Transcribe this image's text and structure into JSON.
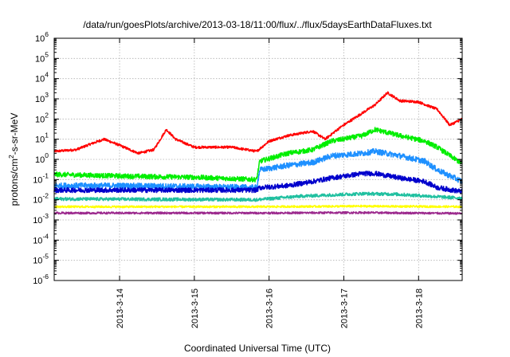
{
  "chart_data": {
    "type": "line",
    "title": "/data/run/goesPlots/archive/2013-03-18/11:00/flux/../flux/5daysEarthDataFluxes.txt",
    "xlabel": "Coordinated Universal Time (UTC)",
    "ylabel": {
      "pre": "protons/cm",
      "sup": "2",
      "post": "-s-sr-MeV"
    },
    "x_axis": {
      "range_days": [
        "2013-03-13T03:00",
        "2013-03-18T14:00"
      ],
      "ticks": [
        {
          "label": "2013-3-14",
          "at": "2013-03-14"
        },
        {
          "label": "2013-3-15",
          "at": "2013-03-15"
        },
        {
          "label": "2013-3-16",
          "at": "2013-03-16"
        },
        {
          "label": "2013-3-17",
          "at": "2013-03-17"
        },
        {
          "label": "2013-3-18",
          "at": "2013-03-18"
        }
      ]
    },
    "y_axis": {
      "scale": "log",
      "range": [
        1e-06,
        1000000.0
      ],
      "tick_exponents": [
        -6,
        -5,
        -4,
        -3,
        -2,
        -1,
        0,
        1,
        2,
        3,
        4,
        5,
        6
      ]
    },
    "grid": true,
    "series": [
      {
        "color": "#ff0000",
        "points": [
          [
            "2013-03-13T03:00",
            2.5
          ],
          [
            "2013-03-13T10:00",
            3
          ],
          [
            "2013-03-13T15:00",
            6
          ],
          [
            "2013-03-13T19:00",
            10
          ],
          [
            "2013-03-14T00:00",
            5
          ],
          [
            "2013-03-14T06:00",
            2
          ],
          [
            "2013-03-14T11:00",
            3
          ],
          [
            "2013-03-14T15:00",
            30
          ],
          [
            "2013-03-14T18:00",
            10
          ],
          [
            "2013-03-15T00:00",
            4
          ],
          [
            "2013-03-15T12:00",
            4
          ],
          [
            "2013-03-15T20:00",
            2.5
          ],
          [
            "2013-03-16T00:00",
            8
          ],
          [
            "2013-03-16T06:00",
            15
          ],
          [
            "2013-03-16T14:00",
            25
          ],
          [
            "2013-03-16T18:00",
            10
          ],
          [
            "2013-03-16T23:00",
            40
          ],
          [
            "2013-03-17T06:00",
            200
          ],
          [
            "2013-03-17T10:00",
            500
          ],
          [
            "2013-03-17T14:00",
            2000
          ],
          [
            "2013-03-17T18:00",
            800
          ],
          [
            "2013-03-18T00:00",
            700
          ],
          [
            "2013-03-18T06:00",
            300
          ],
          [
            "2013-03-18T10:00",
            50
          ],
          [
            "2013-03-18T14:00",
            100
          ]
        ]
      },
      {
        "color": "#00ee00",
        "points": [
          [
            "2013-03-13T03:00",
            0.18
          ],
          [
            "2013-03-14T00:00",
            0.15
          ],
          [
            "2013-03-15T00:00",
            0.13
          ],
          [
            "2013-03-15T20:00",
            0.1
          ],
          [
            "2013-03-15T21:00",
            0.8
          ],
          [
            "2013-03-16T06:00",
            2
          ],
          [
            "2013-03-16T14:00",
            3
          ],
          [
            "2013-03-16T20:00",
            8
          ],
          [
            "2013-03-17T06:00",
            15
          ],
          [
            "2013-03-17T10:00",
            30
          ],
          [
            "2013-03-17T18:00",
            15
          ],
          [
            "2013-03-18T02:00",
            8
          ],
          [
            "2013-03-18T06:00",
            4
          ],
          [
            "2013-03-18T14:00",
            0.6
          ]
        ]
      },
      {
        "color": "#1e90ff",
        "points": [
          [
            "2013-03-13T03:00",
            0.05
          ],
          [
            "2013-03-14T00:00",
            0.05
          ],
          [
            "2013-03-15T00:00",
            0.045
          ],
          [
            "2013-03-15T20:00",
            0.04
          ],
          [
            "2013-03-15T21:00",
            0.3
          ],
          [
            "2013-03-16T06:00",
            0.5
          ],
          [
            "2013-03-16T14:00",
            0.7
          ],
          [
            "2013-03-16T20:00",
            1.5
          ],
          [
            "2013-03-17T06:00",
            2
          ],
          [
            "2013-03-17T10:00",
            2.5
          ],
          [
            "2013-03-17T18:00",
            1.5
          ],
          [
            "2013-03-18T02:00",
            0.8
          ],
          [
            "2013-03-18T06:00",
            0.3
          ],
          [
            "2013-03-18T14:00",
            0.08
          ]
        ]
      },
      {
        "color": "#0000cc",
        "points": [
          [
            "2013-03-13T03:00",
            0.03
          ],
          [
            "2013-03-14T00:00",
            0.03
          ],
          [
            "2013-03-15T00:00",
            0.03
          ],
          [
            "2013-03-15T20:00",
            0.03
          ],
          [
            "2013-03-15T21:00",
            0.04
          ],
          [
            "2013-03-16T06:00",
            0.05
          ],
          [
            "2013-03-16T14:00",
            0.08
          ],
          [
            "2013-03-16T20:00",
            0.12
          ],
          [
            "2013-03-17T06:00",
            0.2
          ],
          [
            "2013-03-17T10:00",
            0.2
          ],
          [
            "2013-03-17T18:00",
            0.12
          ],
          [
            "2013-03-18T02:00",
            0.08
          ],
          [
            "2013-03-18T06:00",
            0.04
          ],
          [
            "2013-03-18T14:00",
            0.025
          ]
        ]
      },
      {
        "color": "#20c0a0",
        "points": [
          [
            "2013-03-13T03:00",
            0.011
          ],
          [
            "2013-03-15T20:00",
            0.01
          ],
          [
            "2013-03-16T10:00",
            0.015
          ],
          [
            "2013-03-17T06:00",
            0.02
          ],
          [
            "2013-03-17T16:00",
            0.019
          ],
          [
            "2013-03-18T14:00",
            0.012
          ]
        ]
      },
      {
        "color": "#ffff00",
        "points": [
          [
            "2013-03-13T03:00",
            0.0045
          ],
          [
            "2013-03-15T20:00",
            0.0045
          ],
          [
            "2013-03-17T06:00",
            0.0048
          ],
          [
            "2013-03-18T14:00",
            0.0045
          ]
        ]
      },
      {
        "color": "#9c2a8e",
        "points": [
          [
            "2013-03-13T03:00",
            0.0022
          ],
          [
            "2013-03-15T20:00",
            0.0022
          ],
          [
            "2013-03-17T06:00",
            0.0023
          ],
          [
            "2013-03-18T14:00",
            0.0021
          ]
        ]
      }
    ]
  }
}
